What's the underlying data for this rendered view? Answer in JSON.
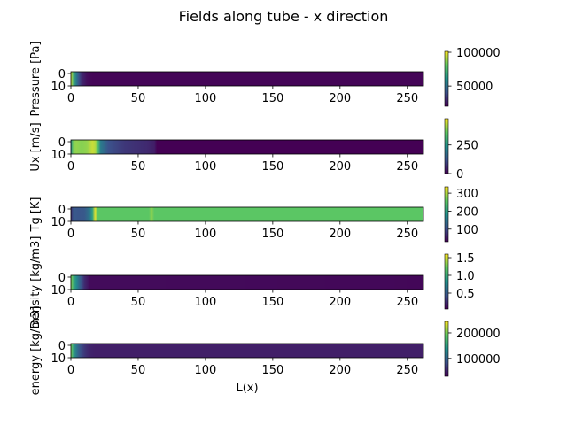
{
  "figure_title": "Fields along tube - x direction",
  "colormap": [
    "#440154",
    "#3b528b",
    "#21918c",
    "#5ec962",
    "#fde725"
  ],
  "chart_data": [
    {
      "type": "heatmap",
      "ylabel": "Pressure [Pa]",
      "xlabel": "",
      "xlim": [
        0,
        262
      ],
      "ylim": [
        10,
        0
      ],
      "x_ticks": [
        0,
        50,
        100,
        150,
        200,
        250
      ],
      "y_ticks": [
        0,
        10
      ],
      "colorbar": {
        "vmin": 20000,
        "vmax": 101325,
        "ticks": [
          50000,
          100000
        ],
        "tick_labels": [
          "50000",
          "100000"
        ]
      },
      "profile_x": [
        0,
        2,
        5,
        8,
        12,
        16,
        262
      ],
      "profile_v": [
        95000,
        70000,
        45000,
        30000,
        23000,
        21000,
        21000
      ]
    },
    {
      "type": "heatmap",
      "ylabel": "Ux [m/s]",
      "xlabel": "",
      "xlim": [
        0,
        262
      ],
      "ylim": [
        10,
        0
      ],
      "x_ticks": [
        0,
        50,
        100,
        150,
        200,
        250
      ],
      "y_ticks": [
        0,
        10
      ],
      "colorbar": {
        "vmin": 0,
        "vmax": 480,
        "ticks": [
          0,
          250
        ],
        "tick_labels": [
          "0",
          "250"
        ]
      },
      "profile_x": [
        0,
        1,
        4,
        8,
        12,
        16,
        19,
        22,
        28,
        40,
        56,
        63,
        64,
        262
      ],
      "profile_v": [
        230,
        380,
        400,
        390,
        400,
        440,
        420,
        200,
        120,
        80,
        60,
        40,
        0,
        0
      ]
    },
    {
      "type": "heatmap",
      "ylabel": "Tg [K]",
      "xlabel": "",
      "xlim": [
        0,
        262
      ],
      "ylim": [
        10,
        0
      ],
      "x_ticks": [
        0,
        50,
        100,
        150,
        200,
        250
      ],
      "y_ticks": [
        0,
        10
      ],
      "colorbar": {
        "vmin": 30,
        "vmax": 335,
        "ticks": [
          100,
          200,
          300
        ],
        "tick_labels": [
          "100",
          "200",
          "300"
        ]
      },
      "profile_x": [
        0,
        1,
        5,
        10,
        14,
        16,
        18,
        20,
        59,
        60,
        62,
        63,
        64,
        262
      ],
      "profile_v": [
        70,
        120,
        110,
        115,
        150,
        200,
        320,
        255,
        255,
        280,
        255,
        280,
        255,
        255
      ]
    },
    {
      "type": "heatmap",
      "ylabel": "Density [kg/m3]",
      "xlabel": "",
      "xlim": [
        0,
        262
      ],
      "ylim": [
        10,
        0
      ],
      "x_ticks": [
        0,
        50,
        100,
        150,
        200,
        250
      ],
      "y_ticks": [
        0,
        10
      ],
      "colorbar": {
        "vmin": 0.05,
        "vmax": 1.6,
        "ticks": [
          0.5,
          1.0,
          1.5
        ],
        "tick_labels": [
          "0.5",
          "1.0",
          "1.5"
        ]
      },
      "profile_x": [
        0,
        2,
        4,
        7,
        10,
        14,
        262
      ],
      "profile_v": [
        1.3,
        1.0,
        0.8,
        0.5,
        0.25,
        0.1,
        0.08
      ]
    },
    {
      "type": "heatmap",
      "ylabel": "energy [kg/m3]",
      "xlabel": "L(x)",
      "xlim": [
        0,
        262
      ],
      "ylim": [
        10,
        0
      ],
      "x_ticks": [
        0,
        50,
        100,
        150,
        200,
        250
      ],
      "y_ticks": [
        0,
        10
      ],
      "colorbar": {
        "vmin": 30000,
        "vmax": 245000,
        "ticks": [
          100000,
          200000
        ],
        "tick_labels": [
          "100000",
          "200000"
        ]
      },
      "profile_x": [
        0,
        2,
        5,
        9,
        13,
        17,
        262
      ],
      "profile_v": [
        200000,
        150000,
        100000,
        70000,
        55000,
        50000,
        50000
      ]
    }
  ]
}
